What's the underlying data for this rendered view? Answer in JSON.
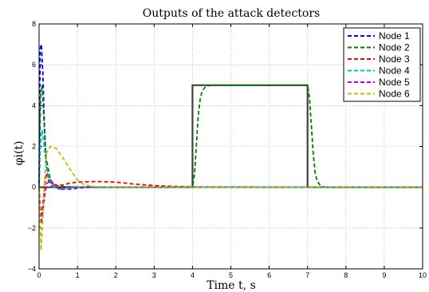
{
  "chart_data": {
    "type": "line",
    "title": "Outputs of the attack detectors",
    "xlabel": "Time t, s",
    "ylabel": "φi(t)",
    "xlim": [
      0,
      10
    ],
    "ylim": [
      -4,
      8
    ],
    "xticks": [
      0,
      1,
      2,
      3,
      4,
      5,
      6,
      7,
      8,
      9,
      10
    ],
    "yticks": [
      -4,
      -2,
      0,
      2,
      4,
      6,
      8
    ],
    "grid": true,
    "legend_position": "top-right",
    "reference": {
      "color": "#404040",
      "x": [
        0,
        4,
        4,
        7,
        7,
        10
      ],
      "y": [
        0,
        0,
        5,
        5,
        0,
        0
      ]
    },
    "series": [
      {
        "name": "Node 1",
        "color": "#0000ff",
        "x": [
          0,
          0.03,
          0.06,
          0.1,
          0.14,
          0.18,
          0.25,
          0.35,
          0.5,
          0.7,
          1,
          1.5,
          2,
          10
        ],
        "y": [
          0.2,
          6.8,
          7.0,
          5.5,
          3.0,
          1.2,
          0.3,
          0.05,
          -0.05,
          0,
          0,
          0,
          0,
          0
        ]
      },
      {
        "name": "Node 2",
        "color": "#007f00",
        "x": [
          0,
          0.04,
          0.08,
          0.12,
          0.18,
          0.3,
          0.5,
          1,
          2,
          3,
          4,
          4.05,
          4.1,
          4.15,
          4.2,
          4.25,
          4.35,
          4.5,
          7,
          7.05,
          7.1,
          7.15,
          7.2,
          7.25,
          7.35,
          7.5,
          10
        ],
        "y": [
          0,
          4.5,
          5.0,
          3.5,
          1.5,
          0.3,
          0.05,
          0,
          0,
          0,
          0,
          0.6,
          2.0,
          3.5,
          4.3,
          4.7,
          4.95,
          5.0,
          5.0,
          4.4,
          3.0,
          1.6,
          0.7,
          0.3,
          0.05,
          0,
          0
        ]
      },
      {
        "name": "Node 3",
        "color": "#ff0000",
        "x": [
          0,
          0.05,
          0.1,
          0.15,
          0.2,
          0.3,
          0.4,
          0.6,
          0.8,
          1,
          1.5,
          2,
          2.5,
          3,
          3.5,
          4,
          10
        ],
        "y": [
          0,
          -1.5,
          -0.8,
          0.2,
          0.7,
          0.35,
          0.1,
          0.1,
          0.2,
          0.25,
          0.28,
          0.25,
          0.15,
          0.08,
          0.04,
          0.02,
          0
        ]
      },
      {
        "name": "Node 4",
        "color": "#00bfbf",
        "x": [
          0,
          0.04,
          0.08,
          0.12,
          0.18,
          0.25,
          0.35,
          0.5,
          0.7,
          1,
          1.5,
          10
        ],
        "y": [
          0,
          2.2,
          2.8,
          2.2,
          1.2,
          0.4,
          0.05,
          -0.1,
          -0.05,
          0,
          0,
          0
        ]
      },
      {
        "name": "Node 5",
        "color": "#bf00bf",
        "x": [
          0,
          0.05,
          0.1,
          0.15,
          0.2,
          0.3,
          0.45,
          0.6,
          0.8,
          1,
          1.3,
          1.6,
          2,
          10
        ],
        "y": [
          0,
          -1.8,
          -1.2,
          -0.4,
          0.2,
          0.3,
          0.0,
          -0.1,
          -0.1,
          -0.05,
          0,
          0.02,
          0,
          0
        ]
      },
      {
        "name": "Node 6",
        "color": "#bfbf00",
        "x": [
          0,
          0.05,
          0.1,
          0.15,
          0.2,
          0.3,
          0.45,
          0.6,
          0.8,
          1,
          1.2,
          1.5,
          2,
          10
        ],
        "y": [
          0,
          -3.1,
          -1.5,
          0.5,
          1.7,
          2.0,
          1.9,
          1.5,
          0.9,
          0.35,
          0.1,
          0.02,
          0,
          0
        ]
      }
    ]
  }
}
